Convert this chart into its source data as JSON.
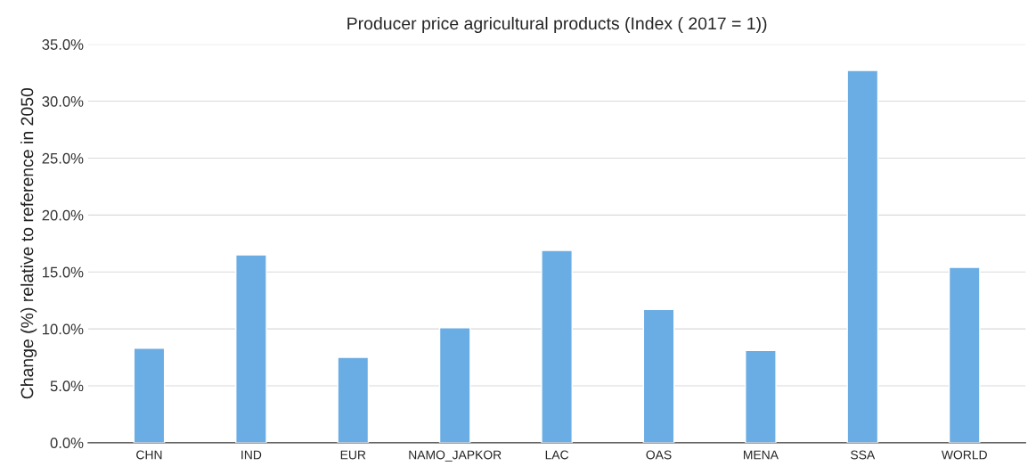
{
  "chart_data": {
    "type": "bar",
    "title": "Producer price agricultural products (Index ( 2017 = 1))",
    "ylabel": "Change (%) relative to reference in 2050",
    "categories": [
      "CHN",
      "IND",
      "EUR",
      "NAMO_JAPKOR",
      "LAC",
      "OAS",
      "MENA",
      "SSA",
      "WORLD"
    ],
    "values": [
      8.3,
      16.5,
      7.5,
      10.1,
      16.9,
      11.7,
      8.1,
      32.7,
      15.4
    ],
    "color": "#6aade4",
    "ylim": [
      0,
      35
    ],
    "yticks": [
      {
        "value": 0,
        "label": "0.0%"
      },
      {
        "value": 5,
        "label": "5.0%"
      },
      {
        "value": 10,
        "label": "10.0%"
      },
      {
        "value": 15,
        "label": "15.0%"
      },
      {
        "value": 20,
        "label": "20.0%"
      },
      {
        "value": 25,
        "label": "25.0%"
      },
      {
        "value": 30,
        "label": "30.0%"
      },
      {
        "value": 35,
        "label": "35.0%"
      }
    ],
    "grid": "y"
  }
}
